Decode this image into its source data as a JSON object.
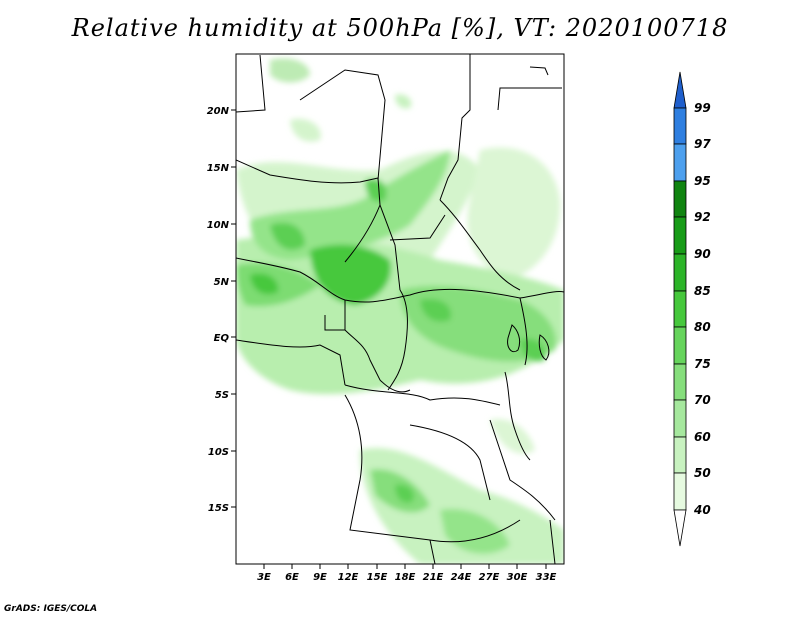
{
  "title": "Relative humidity at 500hPa [%], VT: 2020100718",
  "credit": "GrADS: IGES/COLA",
  "map": {
    "lat_labels": [
      "20N",
      "15N",
      "10N",
      "5N",
      "EQ",
      "5S",
      "10S",
      "15S"
    ],
    "lon_labels": [
      "3E",
      "6E",
      "9E",
      "12E",
      "15E",
      "18E",
      "21E",
      "24E",
      "27E",
      "30E",
      "33E"
    ],
    "lat_range": [
      -19.5,
      24.5
    ],
    "lon_range": [
      0,
      35
    ]
  },
  "colorbar": {
    "levels": [
      "40",
      "50",
      "60",
      "70",
      "75",
      "80",
      "85",
      "90",
      "92",
      "95",
      "97",
      "99"
    ],
    "colors": [
      "#ffffff",
      "#e6fae0",
      "#c8f2c0",
      "#a6e89e",
      "#86de7c",
      "#66d45c",
      "#46c83c",
      "#2cb428",
      "#189c18",
      "#108410",
      "#4da0ee",
      "#2f7fe0",
      "#1f5fcc"
    ]
  }
}
